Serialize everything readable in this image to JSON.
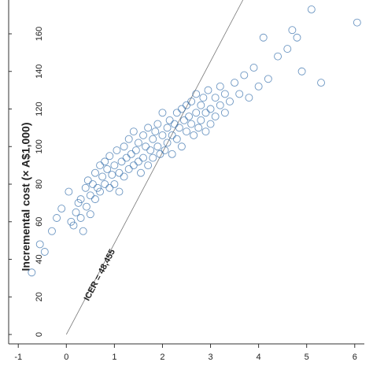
{
  "chart_data": {
    "type": "scatter",
    "ylabel": "Incremental cost (× A$1,000)",
    "annotation": "ICER = 48,455",
    "icer_slope": 48.455,
    "color": "#2e6aa8",
    "xlim": [
      -1.2,
      6.2
    ],
    "ylim": [
      -5,
      178
    ],
    "xticks": [
      -1,
      0,
      1,
      2,
      3,
      4,
      5,
      6
    ],
    "yticks": [
      0,
      20,
      40,
      60,
      80,
      100,
      120,
      140,
      160
    ],
    "x": [
      -0.72,
      -0.55,
      -0.45,
      -0.3,
      -0.2,
      -0.1,
      0.05,
      0.1,
      0.15,
      0.2,
      0.25,
      0.3,
      0.3,
      0.35,
      0.4,
      0.42,
      0.45,
      0.5,
      0.5,
      0.55,
      0.6,
      0.6,
      0.65,
      0.7,
      0.7,
      0.75,
      0.8,
      0.8,
      0.85,
      0.9,
      0.9,
      0.95,
      1.0,
      1.0,
      1.05,
      1.1,
      1.1,
      1.15,
      1.2,
      1.2,
      1.25,
      1.3,
      1.3,
      1.35,
      1.4,
      1.4,
      1.45,
      1.5,
      1.5,
      1.55,
      1.6,
      1.6,
      1.65,
      1.7,
      1.7,
      1.75,
      1.8,
      1.8,
      1.85,
      1.9,
      1.9,
      1.95,
      2.0,
      2.0,
      2.05,
      2.1,
      2.1,
      2.15,
      2.2,
      2.2,
      2.25,
      2.3,
      2.3,
      2.35,
      2.4,
      2.4,
      2.45,
      2.5,
      2.5,
      2.55,
      2.6,
      2.6,
      2.65,
      2.7,
      2.7,
      2.75,
      2.8,
      2.8,
      2.85,
      2.9,
      2.9,
      2.95,
      3.0,
      3.0,
      3.1,
      3.1,
      3.2,
      3.2,
      3.3,
      3.3,
      3.4,
      3.5,
      3.6,
      3.7,
      3.8,
      3.9,
      4.0,
      4.1,
      4.2,
      4.4,
      4.6,
      4.7,
      4.8,
      4.9,
      5.1,
      5.3,
      6.05
    ],
    "values": [
      33,
      48,
      44,
      55,
      62,
      67,
      76,
      60,
      58,
      65,
      70,
      72,
      62,
      55,
      78,
      68,
      82,
      74,
      64,
      80,
      86,
      72,
      78,
      90,
      76,
      84,
      92,
      80,
      88,
      78,
      95,
      85,
      90,
      80,
      98,
      86,
      76,
      92,
      100,
      84,
      94,
      104,
      88,
      96,
      90,
      108,
      98,
      92,
      102,
      86,
      106,
      94,
      100,
      110,
      90,
      98,
      104,
      94,
      108,
      100,
      112,
      96,
      106,
      118,
      98,
      110,
      102,
      114,
      106,
      96,
      112,
      118,
      104,
      110,
      120,
      100,
      114,
      108,
      122,
      116,
      112,
      124,
      106,
      118,
      128,
      110,
      122,
      114,
      126,
      118,
      108,
      130,
      120,
      112,
      126,
      116,
      132,
      122,
      118,
      128,
      124,
      134,
      128,
      138,
      126,
      142,
      132,
      158,
      136,
      148,
      152,
      162,
      158,
      140,
      173,
      134,
      166
    ]
  }
}
